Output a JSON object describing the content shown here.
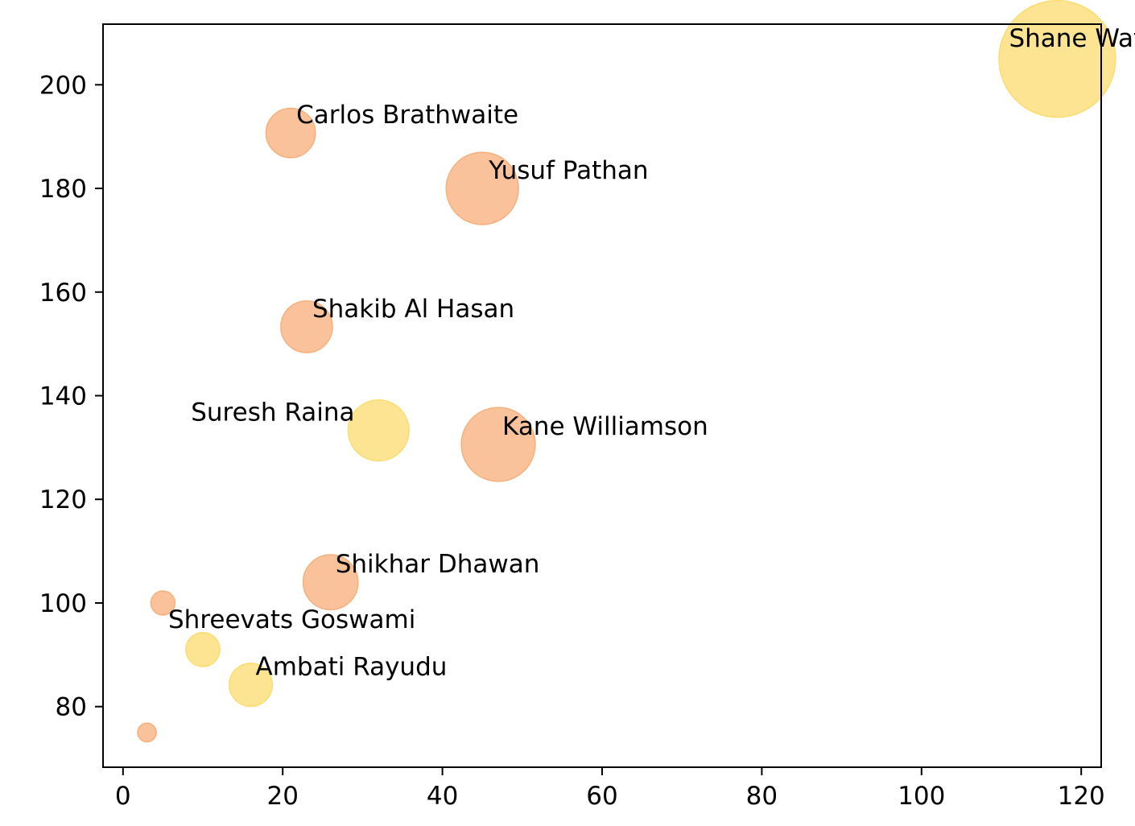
{
  "chart_data": {
    "type": "scatter",
    "title": "",
    "xlabel": "",
    "ylabel": "",
    "xlim": [
      -2.5,
      122.5
    ],
    "ylim": [
      68.3,
      211.7
    ],
    "grid": false,
    "xticks": [
      0,
      20,
      40,
      60,
      80,
      100,
      120
    ],
    "yticks": [
      80,
      100,
      120,
      140,
      160,
      180,
      200
    ],
    "colors": {
      "orange": "#f7ae78",
      "yellow": "#fbdb6d"
    },
    "points": [
      {
        "label": "Shane Watson",
        "x": 117,
        "y": 205.0,
        "size": 117,
        "color": "yellow"
      },
      {
        "label": "Carlos Brathwaite",
        "x": 21,
        "y": 190.7,
        "size": 21,
        "color": "orange"
      },
      {
        "label": "Yusuf Pathan",
        "x": 45,
        "y": 180.0,
        "size": 45,
        "color": "orange"
      },
      {
        "label": "Shakib Al Hasan",
        "x": 23,
        "y": 153.3,
        "size": 23,
        "color": "orange"
      },
      {
        "label": "Suresh Raina",
        "x": 32,
        "y": 133.3,
        "size": 32,
        "color": "yellow"
      },
      {
        "label": "Kane Williamson",
        "x": 47,
        "y": 130.6,
        "size": 47,
        "color": "orange"
      },
      {
        "label": "Shikhar Dhawan",
        "x": 26,
        "y": 104.0,
        "size": 26,
        "color": "orange"
      },
      {
        "label": "",
        "x": 5,
        "y": 100.0,
        "size": 5,
        "color": "orange"
      },
      {
        "label": "Shreevats Goswami",
        "x": 10,
        "y": 91.0,
        "size": 10,
        "color": "yellow"
      },
      {
        "label": "Ambati Rayudu",
        "x": 16,
        "y": 84.2,
        "size": 16,
        "color": "yellow"
      },
      {
        "label": "",
        "x": 3,
        "y": 75.0,
        "size": 3,
        "color": "orange"
      }
    ]
  }
}
